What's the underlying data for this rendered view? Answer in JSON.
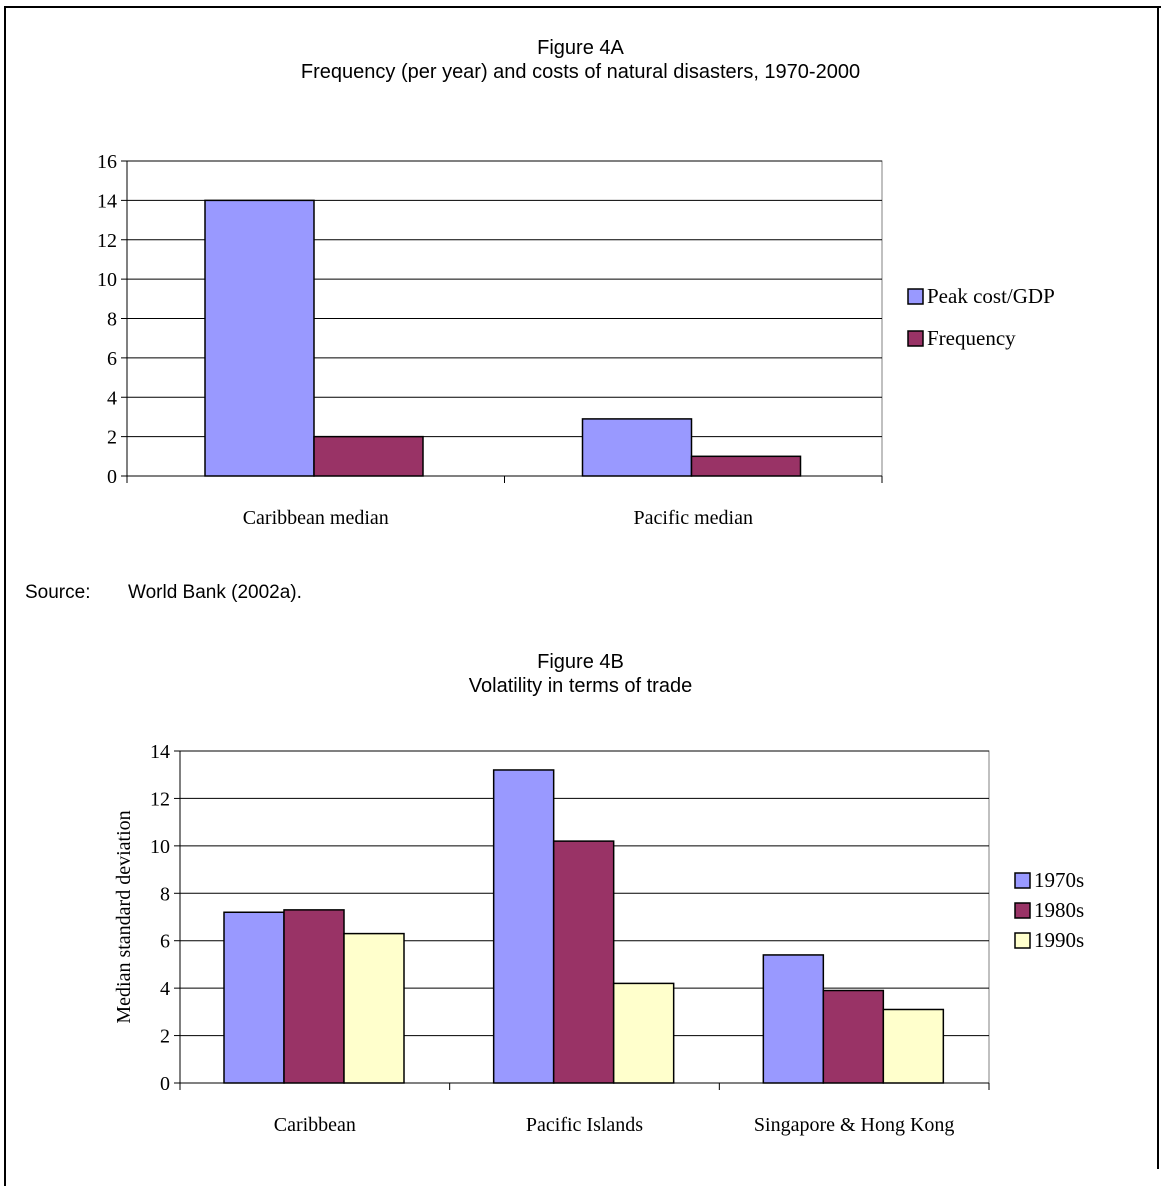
{
  "chart_data": [
    {
      "type": "bar",
      "title": "Figure 4A",
      "subtitle": "Frequency (per year) and costs of natural disasters, 1970-2000",
      "categories": [
        "Caribbean median",
        "Pacific median"
      ],
      "series": [
        {
          "name": "Peak cost/GDP",
          "values": [
            14,
            2.9
          ]
        },
        {
          "name": "Frequency",
          "values": [
            2,
            1
          ]
        }
      ],
      "ylim": [
        0,
        16
      ],
      "yticks": [
        0,
        2,
        4,
        6,
        8,
        10,
        12,
        14,
        16
      ],
      "ylabel": "",
      "xlabel": "",
      "grid": true,
      "legend_position": "right",
      "colors": [
        "#9999ff",
        "#993366"
      ]
    },
    {
      "type": "bar",
      "title": "Figure 4B",
      "subtitle": "Volatility in terms of trade",
      "categories": [
        "Caribbean",
        "Pacific Islands",
        "Singapore & Hong Kong"
      ],
      "series": [
        {
          "name": "1970s",
          "values": [
            7.2,
            13.2,
            5.4
          ]
        },
        {
          "name": "1980s",
          "values": [
            7.3,
            10.2,
            3.9
          ]
        },
        {
          "name": "1990s",
          "values": [
            6.3,
            4.2,
            3.1
          ]
        }
      ],
      "ylim": [
        0,
        14
      ],
      "yticks": [
        0,
        2,
        4,
        6,
        8,
        10,
        12,
        14
      ],
      "ylabel": "Median standard deviation",
      "xlabel": "",
      "grid": true,
      "legend_position": "right",
      "colors": [
        "#9999ff",
        "#993366",
        "#ffffcc"
      ]
    }
  ],
  "source": {
    "label": "Source:",
    "text": "World Bank (2002a)."
  }
}
